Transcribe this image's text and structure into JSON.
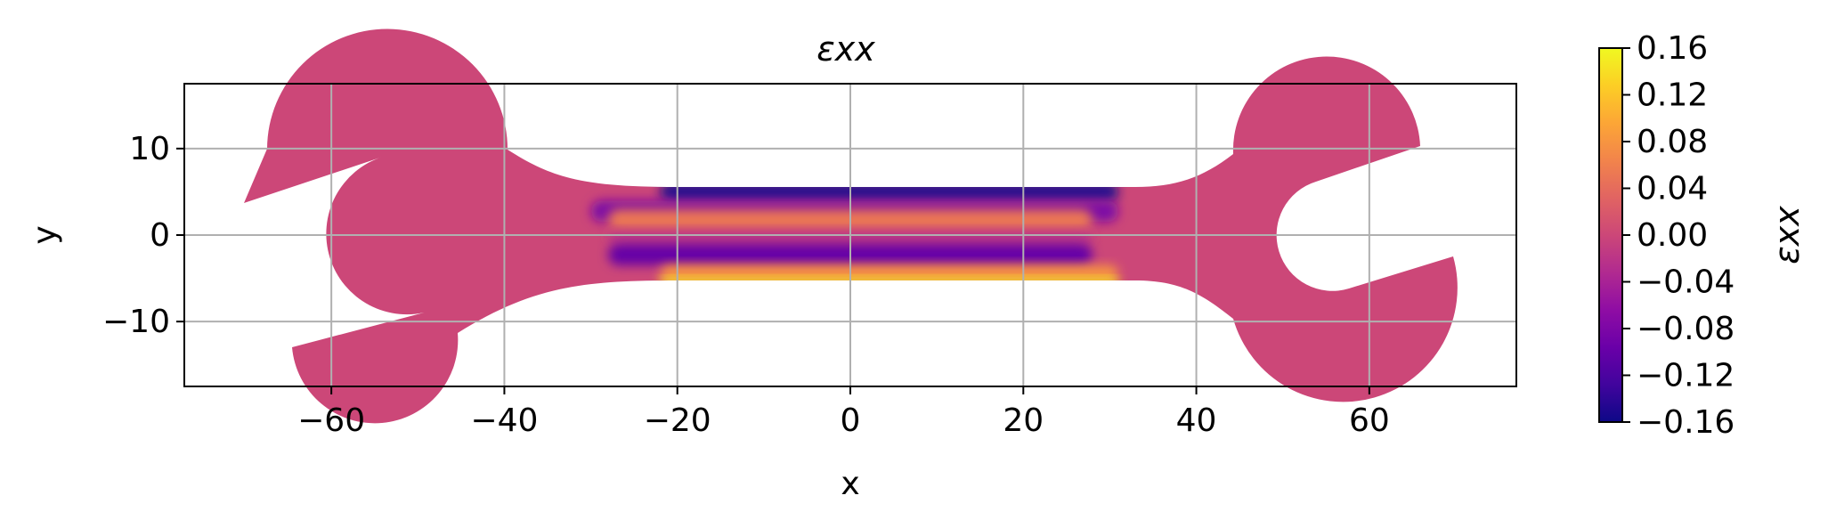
{
  "chart_data": {
    "type": "heatmap",
    "title": "εxx",
    "xlabel": "x",
    "ylabel": "y",
    "xlim": [
      -77,
      77
    ],
    "ylim": [
      -17.5,
      17.5
    ],
    "grid": true,
    "xticks": [
      -60,
      -40,
      -20,
      0,
      20,
      40,
      60
    ],
    "xtick_labels": [
      "−60",
      "−40",
      "−20",
      "0",
      "20",
      "40",
      "60"
    ],
    "yticks": [
      -10,
      0,
      10
    ],
    "ytick_labels": [
      "−10",
      "0",
      "10"
    ],
    "colorbar": {
      "label": "εxx",
      "colormap": "plasma",
      "range": [
        -0.16,
        0.16
      ],
      "ticks": [
        -0.16,
        -0.12,
        -0.08,
        -0.04,
        0.0,
        0.04,
        0.08,
        0.12,
        0.16
      ],
      "tick_labels": [
        "−0.16",
        "−0.12",
        "−0.08",
        "−0.04",
        "0.00",
        "0.04",
        "0.08",
        "0.12",
        "0.16"
      ]
    },
    "field": {
      "description_of_shape": "double open-end wrench",
      "background_value": 0.0,
      "bands": [
        {
          "x": [
            -22,
            31
          ],
          "y": [
            4,
            6
          ],
          "value": -0.15
        },
        {
          "x": [
            -30,
            31
          ],
          "y": [
            1.5,
            4
          ],
          "value": -0.08
        },
        {
          "x": [
            -28,
            28
          ],
          "y": [
            0.5,
            3
          ],
          "value": 0.05
        },
        {
          "x": [
            -28,
            28
          ],
          "y": [
            -1,
            0.5
          ],
          "value": -0.02
        },
        {
          "x": [
            -28,
            28
          ],
          "y": [
            -3.5,
            -1
          ],
          "value": -0.1
        },
        {
          "x": [
            -22,
            31
          ],
          "y": [
            -5.5,
            -3.5
          ],
          "value": 0.08
        },
        {
          "x": [
            -22,
            31
          ],
          "y": [
            -6,
            -5
          ],
          "value": 0.15
        }
      ]
    },
    "colors": {
      "plasma": [
        "#0d0887",
        "#41049d",
        "#6a00a8",
        "#8f0da4",
        "#b12a90",
        "#cc4778",
        "#e16462",
        "#f2844b",
        "#fca636",
        "#fcce25",
        "#f0f921"
      ]
    }
  }
}
